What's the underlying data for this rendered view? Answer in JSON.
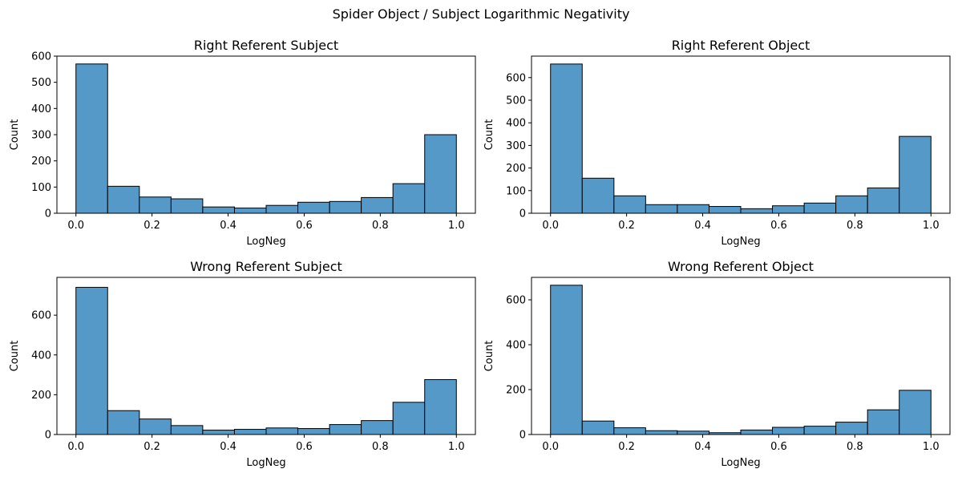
{
  "figure": {
    "suptitle": "Spider Object / Subject Logarithmic Negativity",
    "bar_color": "#5499c7",
    "edge_color": "#000000"
  },
  "chart_data": [
    {
      "type": "bar",
      "title": "Right Referent Subject",
      "xlabel": "LogNeg",
      "ylabel": "Count",
      "bin_edges": [
        0.0,
        0.0833,
        0.1667,
        0.25,
        0.3333,
        0.4167,
        0.5,
        0.5833,
        0.6667,
        0.75,
        0.8333,
        0.9167,
        1.0
      ],
      "values": [
        570,
        103,
        62,
        55,
        24,
        20,
        30,
        42,
        45,
        60,
        113,
        300
      ],
      "xlim": [
        -0.05,
        1.05
      ],
      "ylim": [
        0,
        600
      ],
      "xticks": [
        0.0,
        0.2,
        0.4,
        0.6,
        0.8,
        1.0
      ],
      "xtick_labels": [
        "0.0",
        "0.2",
        "0.4",
        "0.6",
        "0.8",
        "1.0"
      ],
      "yticks": [
        0,
        100,
        200,
        300,
        400,
        500,
        600
      ],
      "ytick_labels": [
        "0",
        "100",
        "200",
        "300",
        "400",
        "500",
        "600"
      ],
      "grid": false
    },
    {
      "type": "bar",
      "title": "Right Referent Object",
      "xlabel": "LogNeg",
      "ylabel": "Count",
      "bin_edges": [
        0.0,
        0.0833,
        0.1667,
        0.25,
        0.3333,
        0.4167,
        0.5,
        0.5833,
        0.6667,
        0.75,
        0.8333,
        0.9167,
        1.0
      ],
      "values": [
        660,
        155,
        77,
        38,
        38,
        30,
        20,
        33,
        45,
        77,
        112,
        340
      ],
      "xlim": [
        -0.05,
        1.05
      ],
      "ylim": [
        0,
        695
      ],
      "xticks": [
        0.0,
        0.2,
        0.4,
        0.6,
        0.8,
        1.0
      ],
      "xtick_labels": [
        "0.0",
        "0.2",
        "0.4",
        "0.6",
        "0.8",
        "1.0"
      ],
      "yticks": [
        0,
        100,
        200,
        300,
        400,
        500,
        600
      ],
      "ytick_labels": [
        "0",
        "100",
        "200",
        "300",
        "400",
        "500",
        "600"
      ],
      "grid": false
    },
    {
      "type": "bar",
      "title": "Wrong Referent Subject",
      "xlabel": "LogNeg",
      "ylabel": "Count",
      "bin_edges": [
        0.0,
        0.0833,
        0.1667,
        0.25,
        0.3333,
        0.4167,
        0.5,
        0.5833,
        0.6667,
        0.75,
        0.8333,
        0.9167,
        1.0
      ],
      "values": [
        740,
        120,
        78,
        45,
        22,
        26,
        33,
        30,
        50,
        70,
        162,
        276
      ],
      "xlim": [
        -0.05,
        1.05
      ],
      "ylim": [
        0,
        790
      ],
      "xticks": [
        0.0,
        0.2,
        0.4,
        0.6,
        0.8,
        1.0
      ],
      "xtick_labels": [
        "0.0",
        "0.2",
        "0.4",
        "0.6",
        "0.8",
        "1.0"
      ],
      "yticks": [
        0,
        200,
        400,
        600
      ],
      "ytick_labels": [
        "0",
        "200",
        "400",
        "600"
      ],
      "grid": false
    },
    {
      "type": "bar",
      "title": "Wrong Referent Object",
      "xlabel": "LogNeg",
      "ylabel": "Count",
      "bin_edges": [
        0.0,
        0.0833,
        0.1667,
        0.25,
        0.3333,
        0.4167,
        0.5,
        0.5833,
        0.6667,
        0.75,
        0.8333,
        0.9167,
        1.0
      ],
      "values": [
        665,
        60,
        30,
        17,
        15,
        8,
        20,
        32,
        37,
        55,
        110,
        197
      ],
      "xlim": [
        -0.05,
        1.05
      ],
      "ylim": [
        0,
        700
      ],
      "xticks": [
        0.0,
        0.2,
        0.4,
        0.6,
        0.8,
        1.0
      ],
      "xtick_labels": [
        "0.0",
        "0.2",
        "0.4",
        "0.6",
        "0.8",
        "1.0"
      ],
      "yticks": [
        0,
        200,
        400,
        600
      ],
      "ytick_labels": [
        "0",
        "200",
        "400",
        "600"
      ],
      "grid": false
    }
  ]
}
